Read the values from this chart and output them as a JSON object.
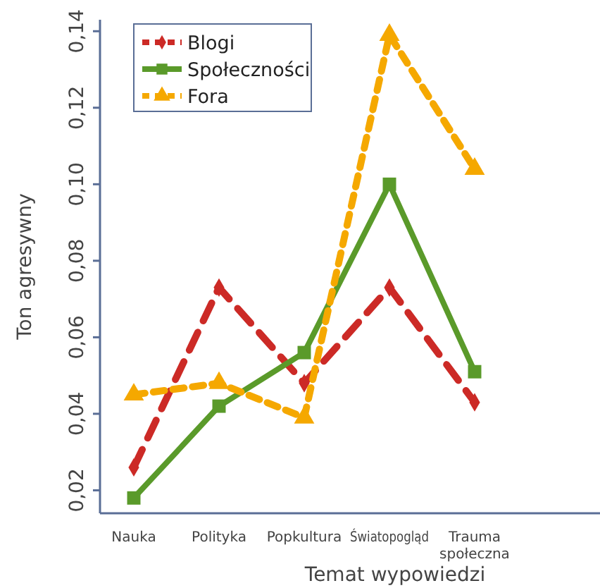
{
  "chart_data": {
    "type": "line",
    "xlabel": "Temat wypowiedzi",
    "ylabel": "Ton agresywny",
    "categories": [
      "Nauka",
      "Polityka",
      "Popkultura",
      "Światopogląd",
      "Trauma społeczna"
    ],
    "series": [
      {
        "name": "Blogi",
        "color": "#cc2a26",
        "values": [
          0.026,
          0.073,
          0.048,
          0.073,
          0.043
        ],
        "marker": "diamond",
        "line_style": "dashed"
      },
      {
        "name": "Społeczności",
        "color": "#5a9a2a",
        "values": [
          0.018,
          0.042,
          0.056,
          0.1,
          0.051
        ],
        "marker": "square",
        "line_style": "solid"
      },
      {
        "name": "Fora",
        "color": "#f5a800",
        "values": [
          0.045,
          0.048,
          0.039,
          0.139,
          0.104
        ],
        "marker": "triangle",
        "line_style": "dashed"
      }
    ],
    "ylim": [
      0.014,
      0.143
    ],
    "yticks": [
      {
        "value": 0.02,
        "label": "0,02"
      },
      {
        "value": 0.04,
        "label": "0,04"
      },
      {
        "value": 0.06,
        "label": "0,06"
      },
      {
        "value": 0.08,
        "label": "0,08"
      },
      {
        "value": 0.1,
        "label": "0,10"
      },
      {
        "value": 0.12,
        "label": "0,12"
      },
      {
        "value": 0.14,
        "label": "0,14"
      }
    ],
    "grid": false,
    "legend": "top left"
  }
}
